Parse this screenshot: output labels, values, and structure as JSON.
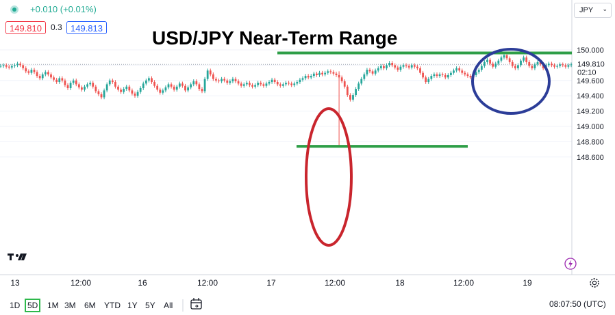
{
  "header": {
    "change": "+0.010 (+0.01%)",
    "bid": "149.810",
    "spread": "0.3",
    "ask": "149.813",
    "currency": "JPY"
  },
  "footer": {
    "timeframes": [
      "1D",
      "5D",
      "1M",
      "3M",
      "6M",
      "YTD",
      "1Y",
      "5Y",
      "All"
    ],
    "active_timeframe": "5D",
    "clock": "08:07:50 (UTC)"
  },
  "chart_data": {
    "type": "line",
    "title": "USD/JPY Near-Term Range",
    "x_ticks": [
      "13",
      "12:00",
      "16",
      "12:00",
      "17",
      "12:00",
      "18",
      "12:00",
      "19"
    ],
    "y_ticks": [
      "150.000",
      "149.800",
      "149.600",
      "149.400",
      "149.200",
      "149.000",
      "148.800",
      "148.600"
    ],
    "ylim": [
      148.55,
      150.27
    ],
    "current_price": "149.810",
    "countdown": "02:10",
    "colors": {
      "up": "#26a69a",
      "down": "#ef5350",
      "range_lines": "#2e9e47",
      "spike_ellipse": "#c9252d",
      "top_ellipse": "#2c3d98"
    },
    "series": [
      {
        "values": [
          149.79,
          149.8,
          149.78,
          149.77,
          149.79,
          149.8,
          149.82,
          149.8,
          149.76,
          149.72,
          149.7,
          149.74,
          149.71,
          149.66,
          149.63,
          149.68,
          149.71,
          149.68,
          149.64,
          149.61,
          149.58,
          149.63,
          149.6,
          149.54,
          149.5,
          149.57,
          149.6,
          149.55,
          149.51,
          149.48,
          149.52,
          149.55,
          149.57,
          149.52,
          149.46,
          149.42,
          149.38,
          149.47,
          149.55,
          149.6,
          149.58,
          149.52,
          149.48,
          149.45,
          149.49,
          149.52,
          149.47,
          149.43,
          149.4,
          149.45,
          149.5,
          149.56,
          149.6,
          149.63,
          149.58,
          149.53,
          149.48,
          149.44,
          149.47,
          149.51,
          149.55,
          149.52,
          149.48,
          149.52,
          149.56,
          149.53,
          149.47,
          149.51,
          149.55,
          149.59,
          149.55,
          149.49,
          149.46,
          149.62,
          149.73,
          149.68,
          149.62,
          149.6,
          149.59,
          149.62,
          149.6,
          149.57,
          149.59,
          149.62,
          149.59,
          149.56,
          149.53,
          149.55,
          149.57,
          149.54,
          149.52,
          149.54,
          149.57,
          149.55,
          149.53,
          149.56,
          149.58,
          149.61,
          149.58,
          149.55,
          149.53,
          149.55,
          149.57,
          149.56,
          149.54,
          149.56,
          149.58,
          149.61,
          149.63,
          149.66,
          149.64,
          149.66,
          149.69,
          149.67,
          149.7,
          149.68,
          149.7,
          149.72,
          149.71,
          149.69,
          149.67,
          149.64,
          149.59,
          149.52,
          149.41,
          149.35,
          149.41,
          149.49,
          149.56,
          149.62,
          149.68,
          149.74,
          149.72,
          149.69,
          149.73,
          149.76,
          149.79,
          149.76,
          149.8,
          149.83,
          149.8,
          149.77,
          149.74,
          149.78,
          149.8,
          149.79,
          149.77,
          149.8,
          149.78,
          149.76,
          149.7,
          149.64,
          149.58,
          149.62,
          149.66,
          149.68,
          149.66,
          149.68,
          149.67,
          149.64,
          149.67,
          149.7,
          149.73,
          149.76,
          149.73,
          149.7,
          149.68,
          149.66,
          149.64,
          149.67,
          149.71,
          149.74,
          149.79,
          149.84,
          149.87,
          149.82,
          149.78,
          149.82,
          149.86,
          149.9,
          149.93,
          149.89,
          149.84,
          149.79,
          149.76,
          149.8,
          149.86,
          149.9,
          149.84,
          149.79,
          149.76,
          149.81,
          149.84,
          149.81,
          149.76,
          149.8,
          149.82,
          149.8,
          149.78,
          149.79,
          149.81,
          149.8,
          149.78,
          149.8,
          149.81
        ]
      }
    ],
    "annotations": {
      "resistance": 149.96,
      "support": 148.74
    }
  }
}
